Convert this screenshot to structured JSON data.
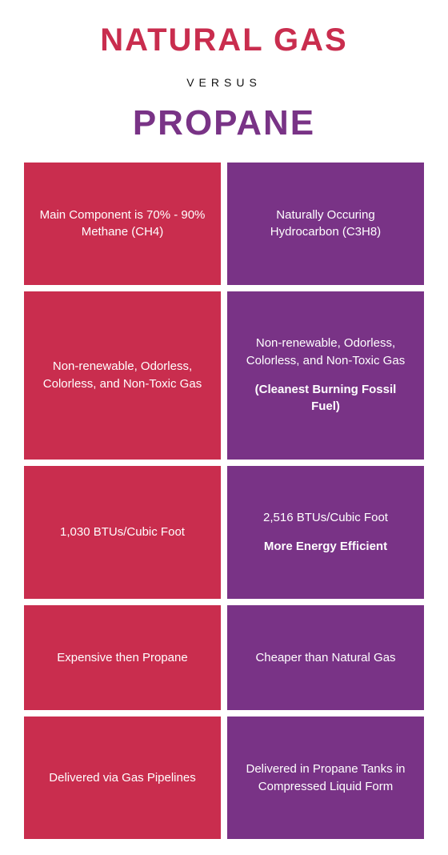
{
  "colors": {
    "red": "#c92d4e",
    "purple": "#793386",
    "text_dark": "#111111",
    "background": "#ffffff"
  },
  "header": {
    "title_a": "NATURAL GAS",
    "title_a_color": "#c92d4e",
    "title_a_fontsize": 40,
    "versus": "VERSUS",
    "versus_fontsize": 14,
    "versus_color": "#111111",
    "title_b": "PROPANE",
    "title_b_color": "#793386",
    "title_b_fontsize": 44
  },
  "rows": [
    {
      "left": {
        "main": "Main Component is 70% - 90% Methane (CH4)",
        "sub": ""
      },
      "right": {
        "main": "Naturally Occuring Hydrocarbon (C3H8)",
        "sub": ""
      }
    },
    {
      "left": {
        "main": "Non-renewable, Odorless, Colorless, and Non-Toxic Gas",
        "sub": ""
      },
      "right": {
        "main": "Non-renewable, Odorless, Colorless, and Non-Toxic Gas",
        "sub": "(Cleanest Burning Fossil Fuel)"
      }
    },
    {
      "left": {
        "main": "1,030 BTUs/Cubic Foot",
        "sub": ""
      },
      "right": {
        "main": "2,516 BTUs/Cubic Foot",
        "sub": "More Energy Efficient"
      }
    },
    {
      "left": {
        "main": "Expensive then Propane",
        "sub": ""
      },
      "right": {
        "main": "Cheaper than Natural Gas",
        "sub": ""
      }
    },
    {
      "left": {
        "main": "Delivered via Gas Pipelines",
        "sub": ""
      },
      "right": {
        "main": "Delivered in Propane Tanks in Compressed Liquid Form",
        "sub": ""
      }
    }
  ]
}
